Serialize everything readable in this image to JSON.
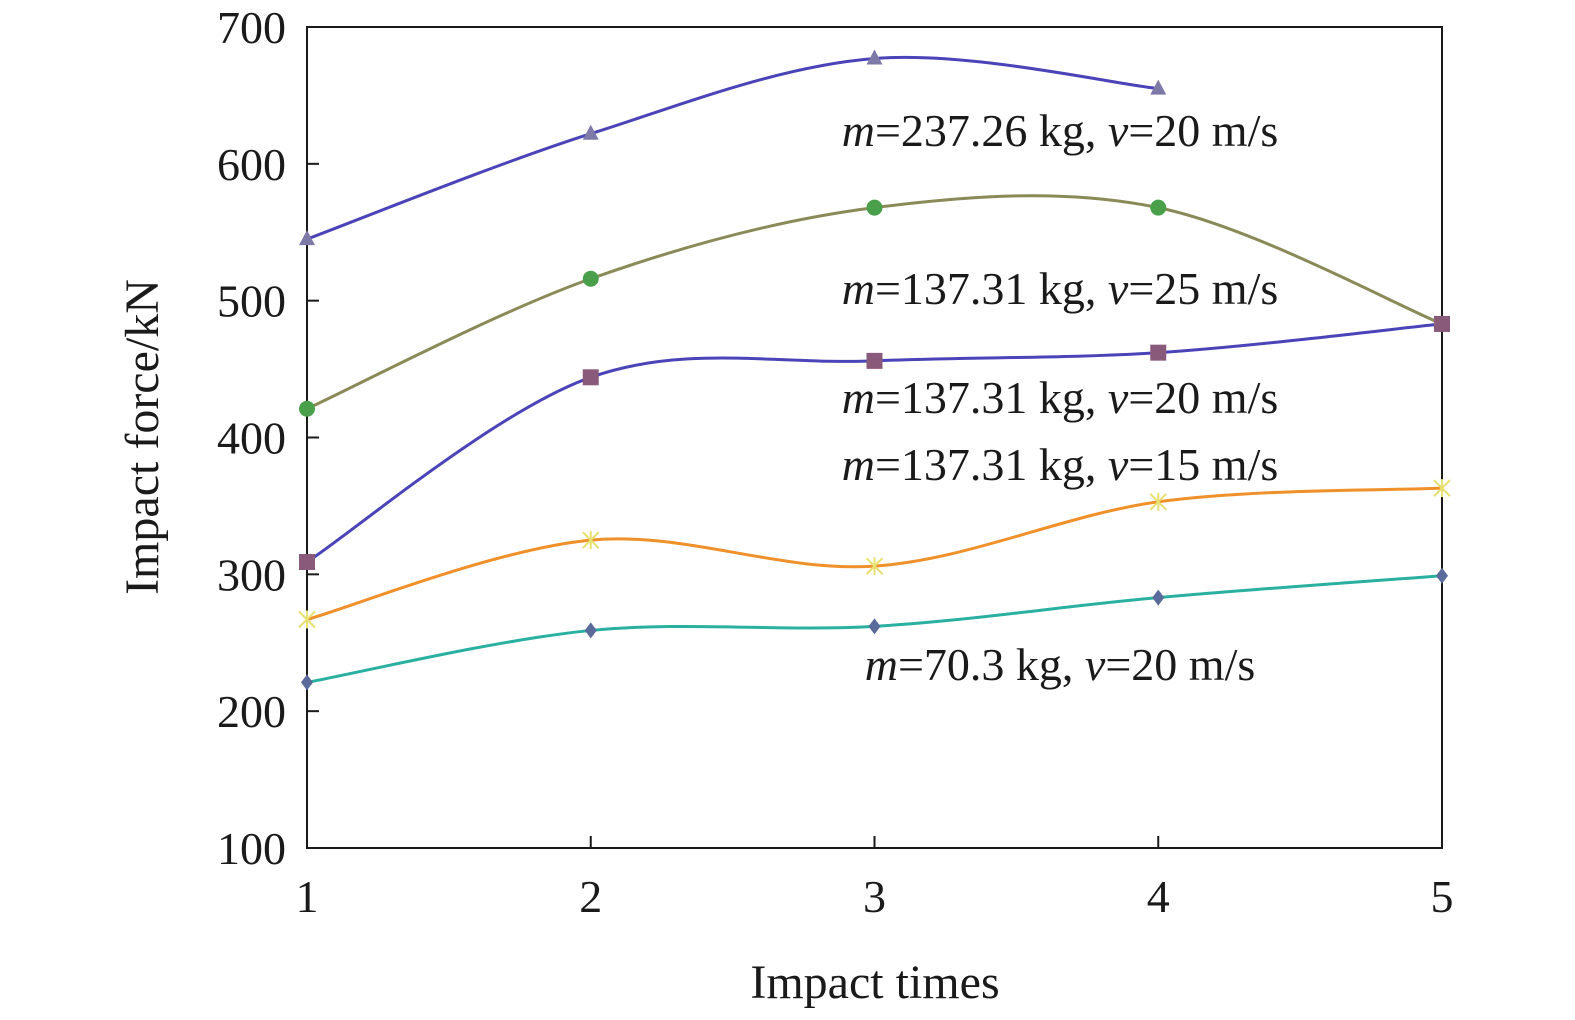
{
  "chart_data": {
    "type": "line",
    "xlabel": "Impact times",
    "ylabel": "Impact force/kN",
    "xlim": [
      1,
      5
    ],
    "ylim": [
      100,
      700
    ],
    "xticks": [
      "1",
      "2",
      "3",
      "4",
      "5"
    ],
    "yticks": [
      "100",
      "200",
      "300",
      "400",
      "500",
      "600",
      "700"
    ],
    "grid": false,
    "legend": "none",
    "series": [
      {
        "marker": "triangle",
        "color": "#4a44b8",
        "marker_color": "#7e7aa8",
        "x": [
          1,
          2,
          3,
          4
        ],
        "values": [
          545,
          622,
          677,
          655
        ],
        "annotation": {
          "m_sym": "m",
          "m_val": "=237.26 kg, ",
          "v_sym": "v",
          "v_val": "=20 m/s"
        }
      },
      {
        "marker": "circle",
        "color": "#8a8a58",
        "marker_color": "#4aa04a",
        "x": [
          1,
          2,
          3,
          4,
          5
        ],
        "values": [
          421,
          516,
          568,
          568,
          483
        ],
        "annotation": {
          "m_sym": "m",
          "m_val": "=137.31 kg, ",
          "v_sym": "v",
          "v_val": "=25 m/s"
        }
      },
      {
        "marker": "square",
        "color": "#4a44b8",
        "marker_color": "#8a5a7a",
        "x": [
          1,
          2,
          3,
          4,
          5
        ],
        "values": [
          309,
          444,
          456,
          462,
          483
        ],
        "annotation": {
          "m_sym": "m",
          "m_val": "=137.31 kg, ",
          "v_sym": "v",
          "v_val": "=20 m/s"
        }
      },
      {
        "marker": "cross",
        "color": "#f0902a",
        "marker_color": "#e8e070",
        "x": [
          1,
          2,
          3,
          4,
          5
        ],
        "values": [
          267,
          325,
          306,
          353,
          363
        ],
        "annotation": {
          "m_sym": "m",
          "m_val": "=137.31 kg, ",
          "v_sym": "v",
          "v_val": "=15 m/s"
        }
      },
      {
        "marker": "diamond",
        "color": "#2ab0a0",
        "marker_color": "#5a6a9a",
        "x": [
          1,
          2,
          3,
          4,
          5
        ],
        "values": [
          221,
          259,
          262,
          283,
          299
        ],
        "annotation": {
          "m_sym": "m",
          "m_val": "=70.3 kg, ",
          "v_sym": "v",
          "v_val": "=20 m/s"
        }
      }
    ]
  }
}
